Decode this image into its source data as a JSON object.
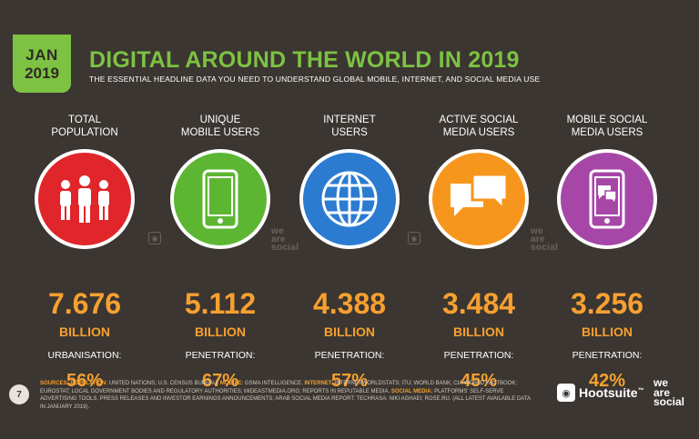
{
  "header": {
    "month": "JAN",
    "year": "2019",
    "title": "DIGITAL AROUND THE WORLD IN 2019",
    "subtitle": "THE ESSENTIAL HEADLINE DATA YOU NEED TO UNDERSTAND GLOBAL MOBILE, INTERNET, AND SOCIAL MEDIA USE"
  },
  "stats": [
    {
      "label_line1": "TOTAL",
      "label_line2": "POPULATION",
      "icon": "people-icon",
      "color": "#e0262b",
      "value": "7.676",
      "unit": "BILLION",
      "sublabel": "URBANISATION:",
      "percent": "56%"
    },
    {
      "label_line1": "UNIQUE",
      "label_line2": "MOBILE USERS",
      "icon": "mobile-phone-icon",
      "color": "#5cb632",
      "value": "5.112",
      "unit": "BILLION",
      "sublabel": "PENETRATION:",
      "percent": "67%"
    },
    {
      "label_line1": "INTERNET",
      "label_line2": "USERS",
      "icon": "globe-icon",
      "color": "#2b7bd1",
      "value": "4.388",
      "unit": "BILLION",
      "sublabel": "PENETRATION:",
      "percent": "57%"
    },
    {
      "label_line1": "ACTIVE SOCIAL",
      "label_line2": "MEDIA USERS",
      "icon": "chat-bubbles-icon",
      "color": "#f7961d",
      "value": "3.484",
      "unit": "BILLION",
      "sublabel": "PENETRATION:",
      "percent": "45%"
    },
    {
      "label_line1": "MOBILE SOCIAL",
      "label_line2": "MEDIA USERS",
      "icon": "mobile-chat-icon",
      "color": "#a647a8",
      "value": "3.256",
      "unit": "BILLION",
      "sublabel": "PENETRATION:",
      "percent": "42%"
    }
  ],
  "footer": {
    "page_number": "7",
    "sources_label": "SOURCES:",
    "src_population_label": "POPULATION:",
    "src_population_text": " UNITED NATIONS; U.S. CENSUS BUREAU. ",
    "src_mobile_label": "MOBILE:",
    "src_mobile_text": " GSMA INTELLIGENCE. ",
    "src_internet_label": "INTERNET:",
    "src_internet_text": " INTERNETWORLDSTATS; ITU; WORLD BANK; CIA WORLD FACTBOOK; EUROSTAT; LOCAL GOVERNMENT BODIES AND REGULATORY AUTHORITIES; MIDEASTMEDIA.ORG; REPORTS IN REPUTABLE MEDIA. ",
    "src_social_label": "SOCIAL MEDIA:",
    "src_social_text": " PLATFORMS' SELF-SERVE ADVERTISING TOOLS, PRESS RELEASES AND INVESTOR EARNINGS ANNOUNCEMENTS; ARAB SOCIAL MEDIA REPORT; TECHRASA; NIKI AGHAEI; ROSE.RU. (ALL LATEST AVAILABLE DATA IN JANUARY 2019).",
    "brand_hootsuite": "Hootsuite",
    "brand_tm": "™",
    "brand_was_1": "we",
    "brand_was_2": "are",
    "brand_was_3": "social"
  },
  "watermark": {
    "w1": "we",
    "w2": "are",
    "w3": "social"
  }
}
